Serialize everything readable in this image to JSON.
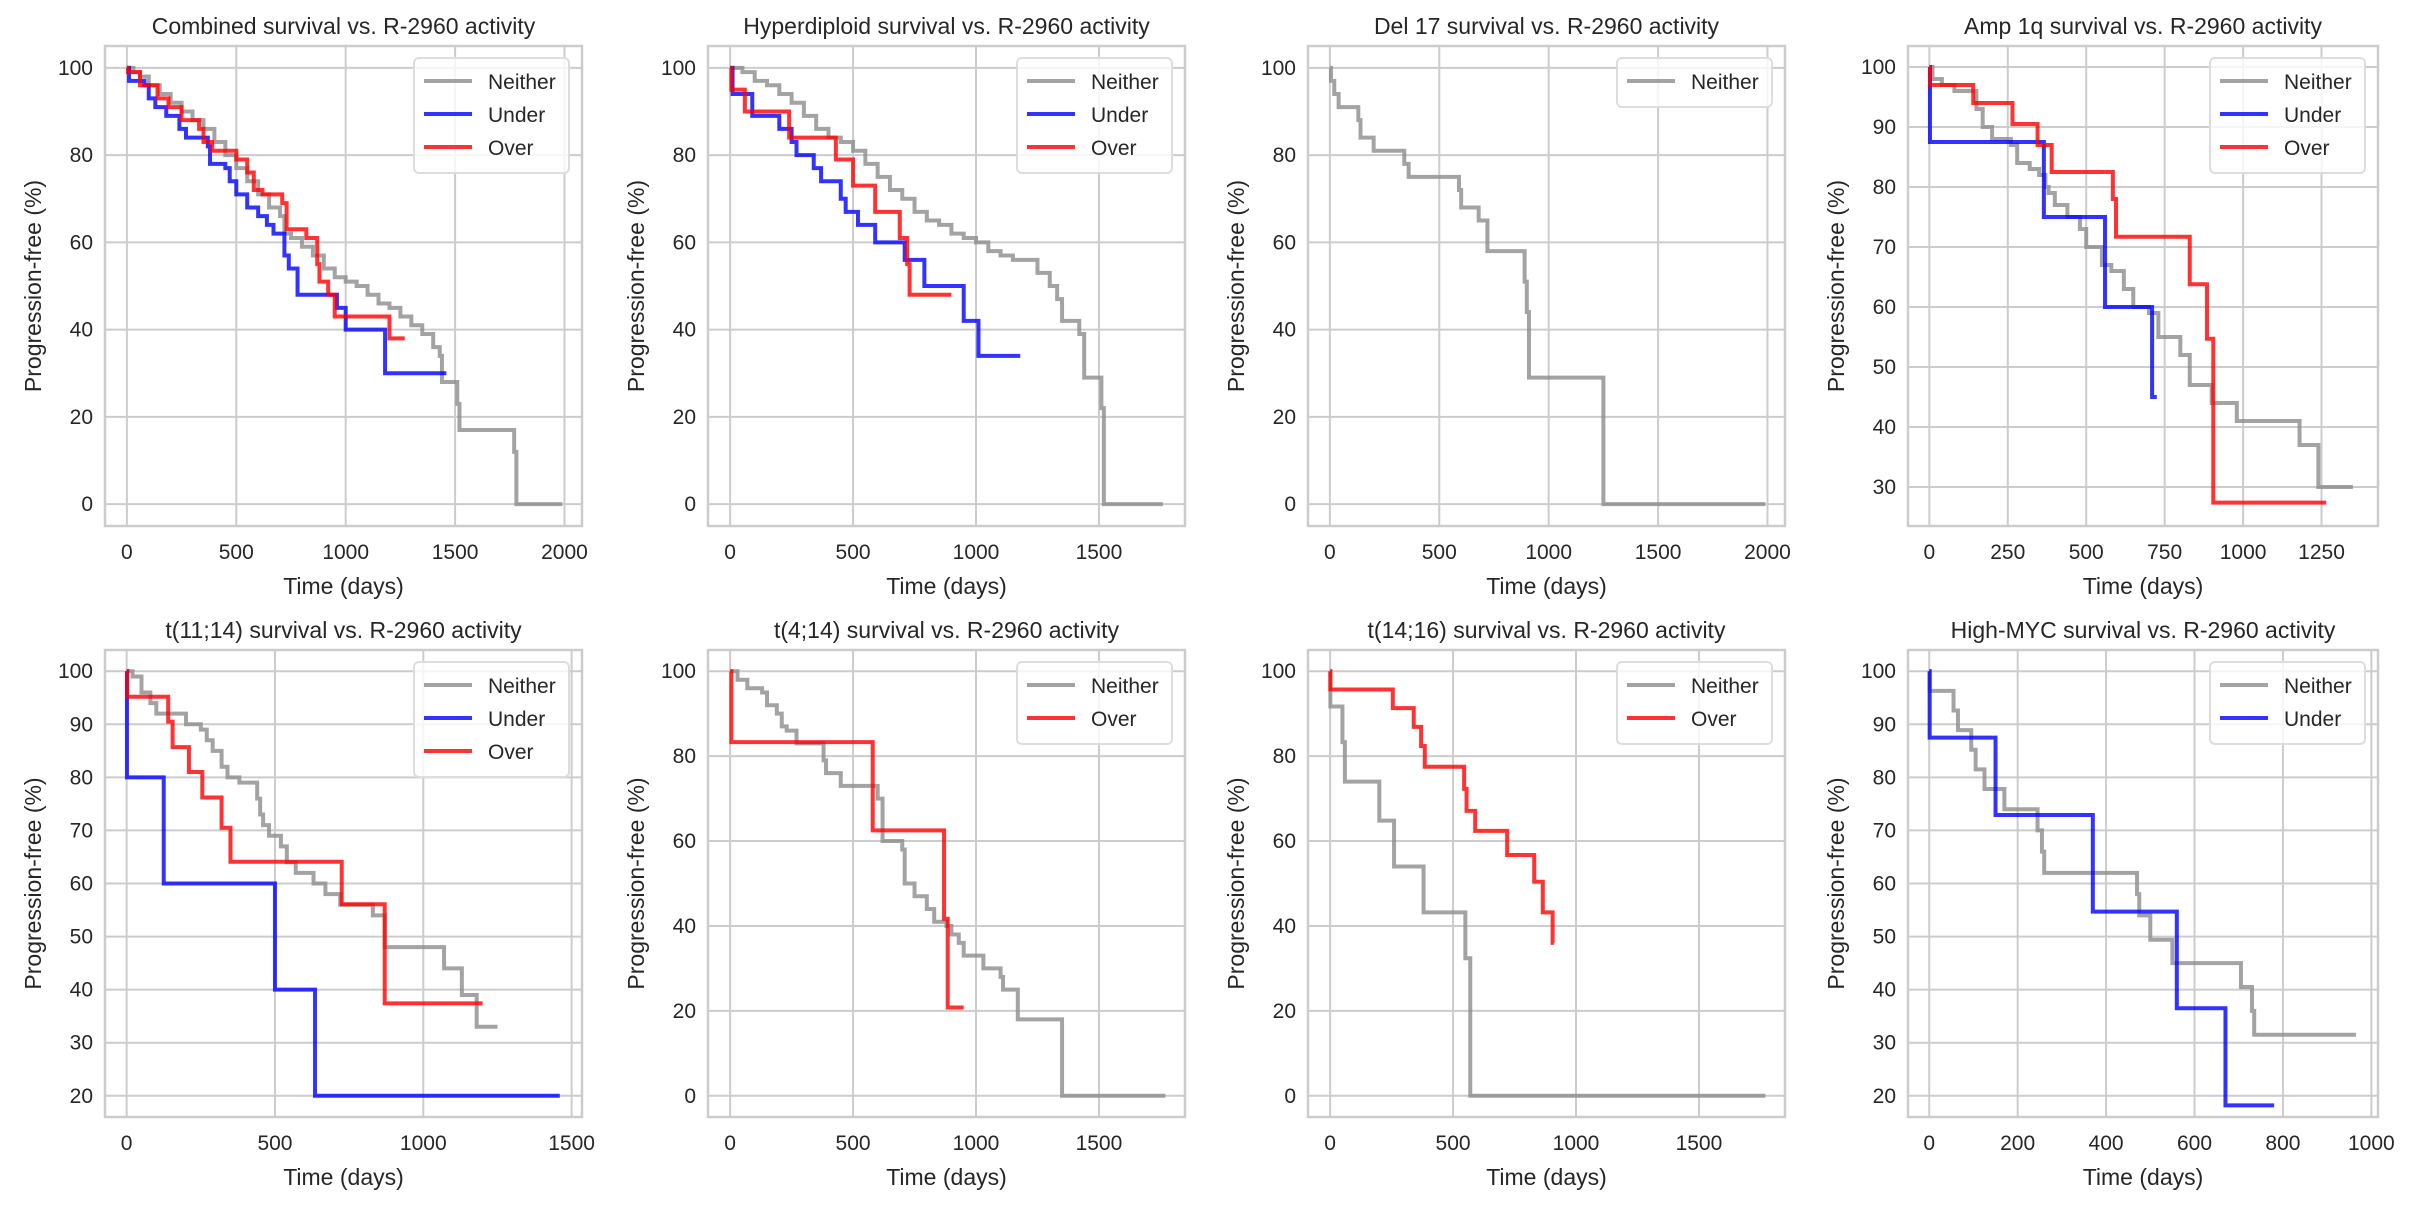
{
  "chart_data": [
    {
      "type": "line",
      "title": "Combined survival vs. R-2960 activity",
      "xlabel": "Time (days)",
      "ylabel": "Progression-free (%)",
      "xlim": [
        -100,
        2080
      ],
      "ylim": [
        -5,
        105
      ],
      "xticks": [
        0,
        500,
        1000,
        1500,
        2000
      ],
      "yticks": [
        0,
        20,
        40,
        60,
        80,
        100
      ],
      "grid": true,
      "legend": "top-right",
      "series": [
        {
          "name": "Neither",
          "color": "#8c8c8c",
          "x": [
            0,
            30,
            60,
            100,
            150,
            200,
            250,
            300,
            350,
            400,
            450,
            500,
            550,
            600,
            650,
            700,
            720,
            750,
            800,
            850,
            900,
            950,
            1000,
            1050,
            1100,
            1150,
            1200,
            1250,
            1300,
            1350,
            1400,
            1430,
            1440,
            1500,
            1510,
            1520,
            1760,
            1770,
            1780,
            1990
          ],
          "y": [
            100,
            99,
            98,
            96,
            94,
            92,
            90,
            88,
            86,
            83,
            80,
            77,
            74,
            71,
            68,
            66,
            62,
            61,
            59,
            57,
            54,
            52,
            51,
            50,
            48,
            46,
            45,
            43,
            41,
            39,
            36,
            34,
            28,
            28,
            23,
            17,
            17,
            12,
            0,
            0
          ]
        },
        {
          "name": "Under",
          "color": "#0000ff",
          "x": [
            0,
            10,
            80,
            100,
            130,
            180,
            240,
            270,
            370,
            380,
            450,
            470,
            500,
            550,
            600,
            640,
            670,
            720,
            740,
            780,
            950,
            960,
            1000,
            1170,
            1180,
            1460
          ],
          "y": [
            100,
            97,
            96,
            93,
            91,
            89,
            86,
            84,
            82,
            78,
            77,
            74,
            71,
            68,
            66,
            64,
            62,
            57,
            54,
            48,
            48,
            45,
            40,
            40,
            30,
            30
          ]
        },
        {
          "name": "Over",
          "color": "#ff0000",
          "x": [
            0,
            5,
            60,
            140,
            190,
            250,
            330,
            350,
            390,
            500,
            550,
            580,
            620,
            710,
            730,
            820,
            870,
            880,
            920,
            950,
            1200,
            1270
          ],
          "y": [
            100,
            99,
            96,
            93,
            91,
            88,
            86,
            83,
            81,
            79,
            76,
            72,
            71,
            69,
            63,
            61,
            55,
            51,
            48,
            43,
            38,
            38
          ]
        }
      ]
    },
    {
      "type": "line",
      "title": "Hyperdiploid survival vs. R-2960 activity",
      "xlabel": "Time (days)",
      "ylabel": "Progression-free (%)",
      "xlim": [
        -90,
        1850
      ],
      "ylim": [
        -5,
        105
      ],
      "xticks": [
        0,
        500,
        1000,
        1500
      ],
      "yticks": [
        0,
        20,
        40,
        60,
        80,
        100
      ],
      "grid": true,
      "legend": "top-right",
      "series": [
        {
          "name": "Neither",
          "color": "#8c8c8c",
          "x": [
            0,
            50,
            100,
            150,
            200,
            250,
            300,
            350,
            400,
            450,
            500,
            550,
            600,
            650,
            700,
            750,
            800,
            850,
            900,
            950,
            1000,
            1050,
            1100,
            1150,
            1200,
            1250,
            1300,
            1330,
            1350,
            1400,
            1420,
            1440,
            1500,
            1510,
            1520,
            1760
          ],
          "y": [
            100,
            99,
            97,
            96,
            94,
            92,
            89,
            86,
            84,
            83,
            81,
            78,
            75,
            72,
            70,
            67,
            65,
            64,
            62,
            61,
            60,
            58,
            57,
            56,
            56,
            53,
            50,
            47,
            42,
            42,
            39,
            29,
            29,
            22,
            0,
            0
          ]
        },
        {
          "name": "Under",
          "color": "#0000ff",
          "x": [
            0,
            10,
            90,
            200,
            250,
            270,
            340,
            370,
            450,
            470,
            520,
            590,
            710,
            790,
            950,
            1010,
            1180
          ],
          "y": [
            100,
            94,
            89,
            86,
            83,
            80,
            77,
            74,
            70,
            67,
            64,
            60,
            56,
            50,
            42,
            34,
            34
          ]
        },
        {
          "name": "Over",
          "color": "#ff0000",
          "x": [
            0,
            5,
            60,
            240,
            430,
            500,
            590,
            690,
            720,
            730,
            900
          ],
          "y": [
            100,
            95,
            90,
            84,
            79,
            73,
            67,
            61,
            55,
            48,
            48
          ]
        }
      ]
    },
    {
      "type": "line",
      "title": "Del 17 survival vs. R-2960 activity",
      "xlabel": "Time (days)",
      "ylabel": "Progression-free (%)",
      "xlim": [
        -100,
        2080
      ],
      "ylim": [
        -5,
        105
      ],
      "xticks": [
        0,
        500,
        1000,
        1500,
        2000
      ],
      "yticks": [
        0,
        20,
        40,
        60,
        80,
        100
      ],
      "grid": true,
      "legend": "top-right",
      "series": [
        {
          "name": "Neither",
          "color": "#8c8c8c",
          "x": [
            0,
            5,
            20,
            40,
            130,
            140,
            200,
            340,
            360,
            590,
            600,
            680,
            720,
            890,
            900,
            910,
            1250,
            1990
          ],
          "y": [
            100,
            97,
            94,
            91,
            88,
            84,
            81,
            78,
            75,
            72,
            68,
            65,
            58,
            51,
            44,
            29,
            0,
            0
          ]
        }
      ]
    },
    {
      "type": "line",
      "title": "Amp 1q survival vs. R-2960 activity",
      "xlabel": "Time (days)",
      "ylabel": "Progression-free (%)",
      "xlim": [
        -68,
        1430
      ],
      "ylim": [
        23.5,
        103.5
      ],
      "xticks": [
        0,
        250,
        500,
        750,
        1000,
        1250
      ],
      "yticks": [
        30,
        40,
        50,
        60,
        70,
        80,
        90,
        100
      ],
      "grid": true,
      "legend": "top-right",
      "series": [
        {
          "name": "Neither",
          "color": "#8c8c8c",
          "x": [
            0,
            10,
            40,
            80,
            150,
            170,
            200,
            260,
            280,
            320,
            350,
            370,
            380,
            400,
            440,
            480,
            500,
            550,
            580,
            620,
            650,
            700,
            730,
            800,
            830,
            900,
            980,
            1180,
            1240,
            1350
          ],
          "y": [
            100,
            98,
            97,
            96,
            93,
            90,
            88,
            87,
            84,
            83,
            82,
            80,
            79,
            77,
            75,
            73,
            70,
            67,
            66,
            63,
            60,
            59,
            55,
            52,
            47,
            44,
            41,
            37,
            30,
            30
          ]
        },
        {
          "name": "Under",
          "color": "#0000ff",
          "x": [
            0,
            2,
            365,
            560,
            710,
            725
          ],
          "y": [
            100,
            87.5,
            75,
            60,
            45,
            45
          ]
        },
        {
          "name": "Over",
          "color": "#ff0000",
          "x": [
            0,
            2,
            140,
            265,
            345,
            390,
            585,
            595,
            830,
            885,
            905,
            1265
          ],
          "y": [
            100,
            97,
            94,
            90.5,
            87,
            82.5,
            78,
            71.7,
            63.8,
            54.7,
            27.4,
            27.4
          ]
        }
      ]
    },
    {
      "type": "line",
      "title": "t(11;14) survival vs. R-2960 activity",
      "xlabel": "Time (days)",
      "ylabel": "Progression-free (%)",
      "xlim": [
        -73,
        1535
      ],
      "ylim": [
        16,
        104
      ],
      "xticks": [
        0,
        500,
        1000,
        1500
      ],
      "yticks": [
        20,
        30,
        40,
        50,
        60,
        70,
        80,
        90,
        100
      ],
      "grid": true,
      "legend": "top-right",
      "series": [
        {
          "name": "Neither",
          "color": "#8c8c8c",
          "x": [
            0,
            20,
            50,
            80,
            100,
            130,
            200,
            250,
            270,
            290,
            320,
            340,
            380,
            440,
            450,
            460,
            480,
            520,
            540,
            570,
            630,
            670,
            720,
            830,
            870,
            1070,
            1130,
            1180,
            1250
          ],
          "y": [
            100,
            99,
            96,
            94,
            92,
            92,
            90,
            89,
            87,
            85,
            82,
            80,
            79,
            76,
            73,
            71,
            69,
            67,
            64,
            62,
            60,
            58,
            56,
            54,
            48,
            44,
            39,
            33,
            33
          ]
        },
        {
          "name": "Under",
          "color": "#0000ff",
          "x": [
            0,
            1,
            125,
            500,
            635,
            1460
          ],
          "y": [
            100,
            80,
            60,
            40,
            20,
            20
          ]
        },
        {
          "name": "Over",
          "color": "#ff0000",
          "x": [
            0,
            2,
            140,
            155,
            210,
            255,
            320,
            350,
            725,
            870,
            1200
          ],
          "y": [
            100,
            95.2,
            90.5,
            85.7,
            81,
            76.2,
            70.5,
            64.1,
            56.1,
            37.4,
            37.4
          ]
        }
      ]
    },
    {
      "type": "line",
      "title": "t(4;14) survival vs. R-2960 activity",
      "xlabel": "Time (days)",
      "ylabel": "Progression-free (%)",
      "xlim": [
        -90,
        1850
      ],
      "ylim": [
        -5,
        105
      ],
      "xticks": [
        0,
        500,
        1000,
        1500
      ],
      "yticks": [
        0,
        20,
        40,
        60,
        80,
        100
      ],
      "grid": true,
      "legend": "top-right",
      "series": [
        {
          "name": "Neither",
          "color": "#8c8c8c",
          "x": [
            0,
            30,
            70,
            130,
            150,
            190,
            210,
            230,
            270,
            350,
            380,
            390,
            450,
            590,
            600,
            620,
            700,
            710,
            750,
            800,
            830,
            880,
            900,
            930,
            950,
            1030,
            1100,
            1110,
            1170,
            1350,
            1770
          ],
          "y": [
            100,
            98,
            96,
            95,
            92,
            90,
            87,
            86,
            83,
            83,
            79,
            76,
            73,
            73,
            70,
            60,
            58,
            50,
            47,
            44,
            41,
            40,
            38,
            36,
            33,
            30,
            28,
            25,
            18,
            0,
            0
          ]
        },
        {
          "name": "Over",
          "color": "#ff0000",
          "x": [
            0,
            5,
            580,
            870,
            885,
            950
          ],
          "y": [
            100,
            83.3,
            62.5,
            41.7,
            20.8,
            20.8
          ]
        }
      ]
    },
    {
      "type": "line",
      "title": "t(14;16) survival vs. R-2960 activity",
      "xlabel": "Time (days)",
      "ylabel": "Progression-free (%)",
      "xlim": [
        -90,
        1850
      ],
      "ylim": [
        -5,
        105
      ],
      "xticks": [
        0,
        500,
        1000,
        1500
      ],
      "yticks": [
        0,
        20,
        40,
        60,
        80,
        100
      ],
      "grid": true,
      "legend": "top-right",
      "series": [
        {
          "name": "Neither",
          "color": "#8c8c8c",
          "x": [
            0,
            1,
            50,
            60,
            200,
            260,
            380,
            550,
            570,
            1770
          ],
          "y": [
            100,
            91.7,
            83.3,
            74,
            64.8,
            54,
            43.2,
            32.4,
            0,
            0
          ]
        },
        {
          "name": "Over",
          "color": "#ff0000",
          "x": [
            0,
            1,
            255,
            340,
            370,
            385,
            545,
            555,
            590,
            720,
            830,
            865,
            905,
            910
          ],
          "y": [
            100,
            95.7,
            91.3,
            86.9,
            82.4,
            77.5,
            72.3,
            67.1,
            62.4,
            56.7,
            50.4,
            43.2,
            36,
            36
          ]
        }
      ]
    },
    {
      "type": "line",
      "title": "High-MYC survival vs. R-2960 activity",
      "xlabel": "Time (days)",
      "ylabel": "Progression-free (%)",
      "xlim": [
        -48,
        1015
      ],
      "ylim": [
        16,
        104
      ],
      "xticks": [
        0,
        200,
        400,
        600,
        800,
        1000
      ],
      "yticks": [
        20,
        30,
        40,
        50,
        60,
        70,
        80,
        90,
        100
      ],
      "grid": true,
      "legend": "top-right",
      "series": [
        {
          "name": "Neither",
          "color": "#8c8c8c",
          "x": [
            0,
            1,
            55,
            65,
            95,
            105,
            125,
            170,
            245,
            255,
            260,
            470,
            475,
            500,
            550,
            705,
            730,
            735,
            965
          ],
          "y": [
            100,
            96.3,
            92.6,
            88.9,
            85.2,
            81.5,
            77.8,
            74,
            70,
            66,
            62,
            58,
            54,
            49.4,
            45,
            40.5,
            36,
            31.5,
            31.5
          ]
        },
        {
          "name": "Under",
          "color": "#0000ff",
          "x": [
            0,
            1,
            150,
            370,
            560,
            670,
            780
          ],
          "y": [
            100,
            87.5,
            72.9,
            54.7,
            36.5,
            18.2,
            18.2
          ]
        }
      ]
    }
  ]
}
